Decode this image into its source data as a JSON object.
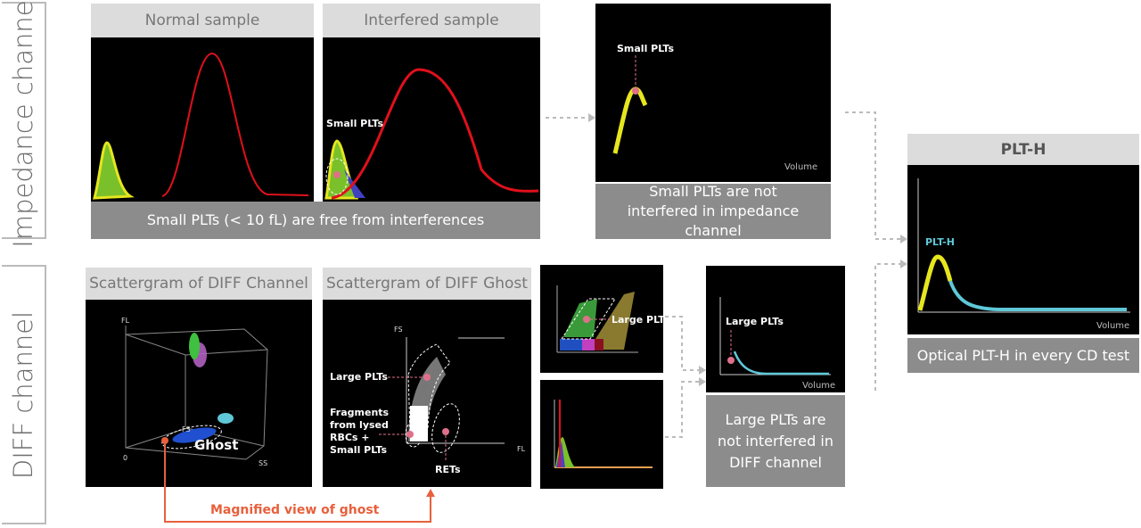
{
  "impedance": {
    "side_label": "Impedance channel",
    "normal_header": "Normal sample",
    "interfered_header": "Interfered sample",
    "small_plts_label": "Small PLTs",
    "caption": "Small PLTs (< 10 fL) are free from interferences",
    "result_small_plts_label": "Small PLTs",
    "result_volume": "Volume",
    "result_caption": "Small PLTs are not interfered in impedance channel"
  },
  "diff": {
    "side_label": "DIFF channel",
    "scatter_header": "Scattergram of DIFF Channel",
    "ghost_header": "Scattergram of DIFF Ghost",
    "axis_fl": "FL",
    "axis_fs": "FS",
    "axis_ss": "SS",
    "axis_zero": "0",
    "ghost_label": "Ghost",
    "large_plts": "Large PLTs",
    "fragments": [
      "Fragments",
      "from lysed",
      "RBCs +",
      "Small PLTs"
    ],
    "rets": "RETs",
    "magnified": "Magnified view of ghost",
    "result_large_plts": "Large PLTs",
    "result_volume": "Volume",
    "result_caption": "Large PLTs are not interfered in DIFF channel"
  },
  "plth": {
    "header": "PLT-H",
    "curve_label": "PLT-H",
    "volume": "Volume",
    "caption": "Optical PLT-H in every CD test"
  },
  "colors": {
    "red_curve": "#e0101c",
    "yellow": "#e6e61e",
    "cyan": "#5ec8d8",
    "pink": "#e0708a",
    "accent": "#e8603c",
    "caption_bg": "#8c8c8c"
  }
}
